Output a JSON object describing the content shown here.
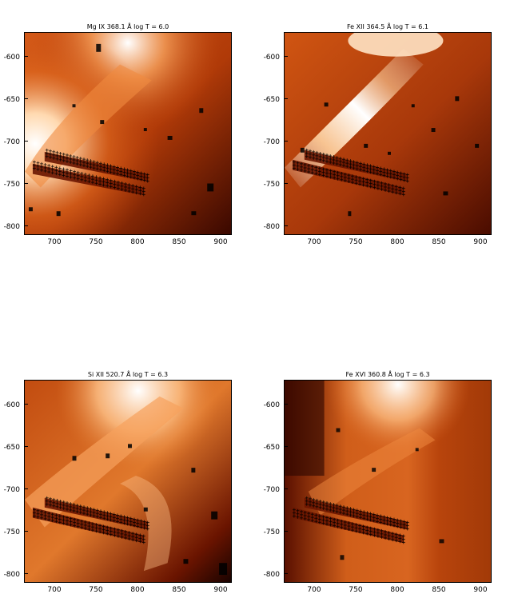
{
  "panels": [
    {
      "title": "Mg IX  368.1 Å log T = 6.0",
      "variant": "mg"
    },
    {
      "title": "Fe XII  364.5 Å log T = 6.1",
      "variant": "fe12"
    },
    {
      "title": "Si XII  520.7 Å log T = 6.3",
      "variant": "si"
    },
    {
      "title": "Fe XVI  360.8 Å log T = 6.3",
      "variant": "fe16"
    }
  ],
  "y_ticks": [
    "-600",
    "-650",
    "-700",
    "-750",
    "-800"
  ],
  "x_ticks": [
    "700",
    "750",
    "800",
    "850",
    "900"
  ],
  "colors": {
    "background": "#ffffff",
    "dark": "#2a0500",
    "mid": "#c44a10",
    "bright": "#f6a15c",
    "white": "#ffffff"
  }
}
